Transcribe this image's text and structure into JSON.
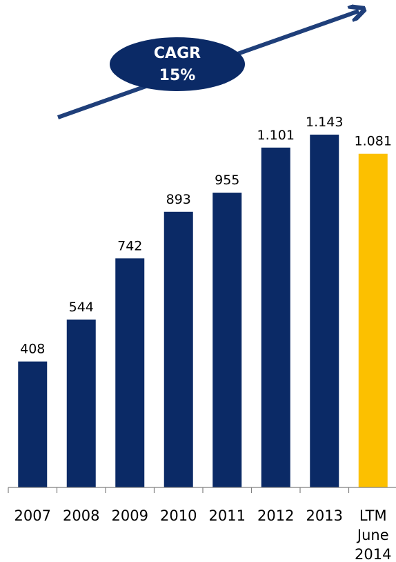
{
  "chart_data": {
    "type": "bar",
    "categories": [
      "2007",
      "2008",
      "2009",
      "2010",
      "2011",
      "2012",
      "2013",
      "LTM June 2014"
    ],
    "values": [
      408,
      544,
      742,
      893,
      955,
      1101,
      1143,
      1081
    ],
    "data_labels": [
      "408",
      "544",
      "742",
      "893",
      "955",
      "1.101",
      "1.143",
      "1.081"
    ],
    "ylim": [
      0,
      1143
    ],
    "grid": false,
    "annotation": {
      "line1": "CAGR",
      "line2": "15%"
    },
    "colors": {
      "bar": "#0b2a66",
      "highlight_bar": "#fcc000",
      "arrow": "#1f3f7a",
      "ellipse": "#0b2a66",
      "ellipse_text": "#ffffff",
      "axis": "#808080",
      "text": "#000000"
    },
    "highlight_index": 7
  }
}
